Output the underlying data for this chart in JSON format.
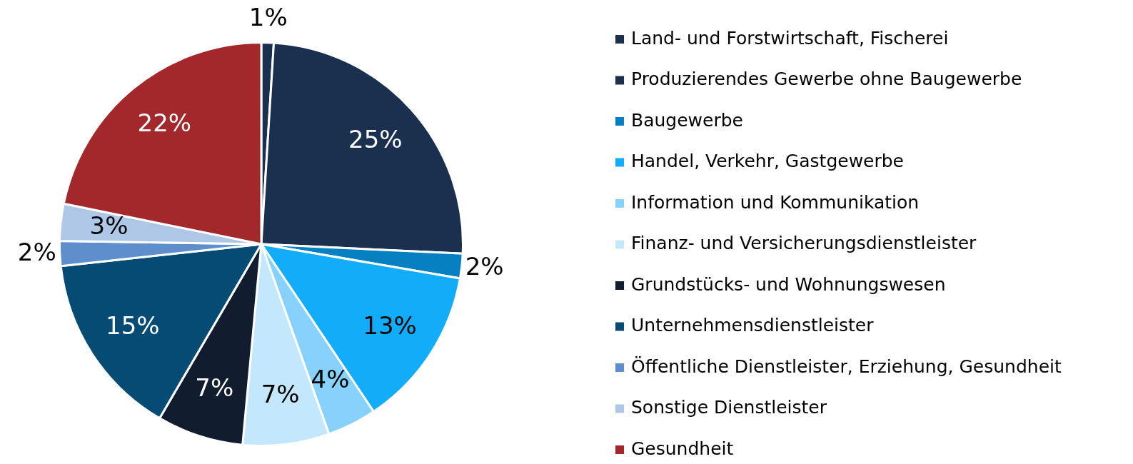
{
  "chart_data": {
    "type": "pie",
    "categories": [
      "Land- und Forstwirtschaft, Fischerei",
      "Produzierendes Gewerbe ohne Baugewerbe",
      "Baugewerbe",
      "Handel, Verkehr, Gastgewerbe",
      "Information und Kommunikation",
      "Finanz- und Versicherungsdienstleister",
      "Grundstücks- und Wohnungswesen",
      "Unternehmensdienstleister",
      "Öffentliche Dienstleister, Erziehung, Gesundheit",
      "Sonstige Dienstleister",
      "Gesundheit"
    ],
    "values": [
      1,
      25,
      2,
      13,
      4,
      7,
      7,
      15,
      2,
      3,
      22
    ],
    "colors": [
      "#1b2f4e",
      "#1b2f4e",
      "#0780c2",
      "#12acf8",
      "#86d2fc",
      "#c3e7fc",
      "#111d2e",
      "#054b73",
      "#5e8ecc",
      "#afc7e6",
      "#a3282b"
    ],
    "value_labels": [
      "1%",
      "25%",
      "2%",
      "13%",
      "4%",
      "7%",
      "7%",
      "15%",
      "2%",
      "3%",
      "22%"
    ],
    "legend": "right"
  }
}
